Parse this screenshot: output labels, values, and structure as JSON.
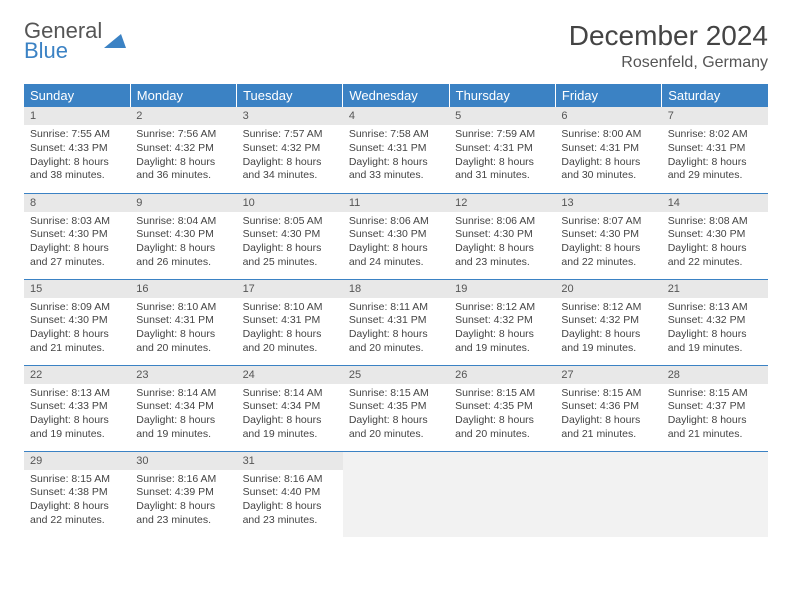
{
  "logo": {
    "line1": "General",
    "line2": "Blue"
  },
  "title": "December 2024",
  "location": "Rosenfeld, Germany",
  "colors": {
    "header_bg": "#3b82c4",
    "daynum_bg": "#e8e8e8",
    "border": "#3b82c4"
  },
  "weekdays": [
    "Sunday",
    "Monday",
    "Tuesday",
    "Wednesday",
    "Thursday",
    "Friday",
    "Saturday"
  ],
  "weeks": [
    [
      {
        "n": "1",
        "sr": "Sunrise: 7:55 AM",
        "ss": "Sunset: 4:33 PM",
        "dl1": "Daylight: 8 hours",
        "dl2": "and 38 minutes."
      },
      {
        "n": "2",
        "sr": "Sunrise: 7:56 AM",
        "ss": "Sunset: 4:32 PM",
        "dl1": "Daylight: 8 hours",
        "dl2": "and 36 minutes."
      },
      {
        "n": "3",
        "sr": "Sunrise: 7:57 AM",
        "ss": "Sunset: 4:32 PM",
        "dl1": "Daylight: 8 hours",
        "dl2": "and 34 minutes."
      },
      {
        "n": "4",
        "sr": "Sunrise: 7:58 AM",
        "ss": "Sunset: 4:31 PM",
        "dl1": "Daylight: 8 hours",
        "dl2": "and 33 minutes."
      },
      {
        "n": "5",
        "sr": "Sunrise: 7:59 AM",
        "ss": "Sunset: 4:31 PM",
        "dl1": "Daylight: 8 hours",
        "dl2": "and 31 minutes."
      },
      {
        "n": "6",
        "sr": "Sunrise: 8:00 AM",
        "ss": "Sunset: 4:31 PM",
        "dl1": "Daylight: 8 hours",
        "dl2": "and 30 minutes."
      },
      {
        "n": "7",
        "sr": "Sunrise: 8:02 AM",
        "ss": "Sunset: 4:31 PM",
        "dl1": "Daylight: 8 hours",
        "dl2": "and 29 minutes."
      }
    ],
    [
      {
        "n": "8",
        "sr": "Sunrise: 8:03 AM",
        "ss": "Sunset: 4:30 PM",
        "dl1": "Daylight: 8 hours",
        "dl2": "and 27 minutes."
      },
      {
        "n": "9",
        "sr": "Sunrise: 8:04 AM",
        "ss": "Sunset: 4:30 PM",
        "dl1": "Daylight: 8 hours",
        "dl2": "and 26 minutes."
      },
      {
        "n": "10",
        "sr": "Sunrise: 8:05 AM",
        "ss": "Sunset: 4:30 PM",
        "dl1": "Daylight: 8 hours",
        "dl2": "and 25 minutes."
      },
      {
        "n": "11",
        "sr": "Sunrise: 8:06 AM",
        "ss": "Sunset: 4:30 PM",
        "dl1": "Daylight: 8 hours",
        "dl2": "and 24 minutes."
      },
      {
        "n": "12",
        "sr": "Sunrise: 8:06 AM",
        "ss": "Sunset: 4:30 PM",
        "dl1": "Daylight: 8 hours",
        "dl2": "and 23 minutes."
      },
      {
        "n": "13",
        "sr": "Sunrise: 8:07 AM",
        "ss": "Sunset: 4:30 PM",
        "dl1": "Daylight: 8 hours",
        "dl2": "and 22 minutes."
      },
      {
        "n": "14",
        "sr": "Sunrise: 8:08 AM",
        "ss": "Sunset: 4:30 PM",
        "dl1": "Daylight: 8 hours",
        "dl2": "and 22 minutes."
      }
    ],
    [
      {
        "n": "15",
        "sr": "Sunrise: 8:09 AM",
        "ss": "Sunset: 4:30 PM",
        "dl1": "Daylight: 8 hours",
        "dl2": "and 21 minutes."
      },
      {
        "n": "16",
        "sr": "Sunrise: 8:10 AM",
        "ss": "Sunset: 4:31 PM",
        "dl1": "Daylight: 8 hours",
        "dl2": "and 20 minutes."
      },
      {
        "n": "17",
        "sr": "Sunrise: 8:10 AM",
        "ss": "Sunset: 4:31 PM",
        "dl1": "Daylight: 8 hours",
        "dl2": "and 20 minutes."
      },
      {
        "n": "18",
        "sr": "Sunrise: 8:11 AM",
        "ss": "Sunset: 4:31 PM",
        "dl1": "Daylight: 8 hours",
        "dl2": "and 20 minutes."
      },
      {
        "n": "19",
        "sr": "Sunrise: 8:12 AM",
        "ss": "Sunset: 4:32 PM",
        "dl1": "Daylight: 8 hours",
        "dl2": "and 19 minutes."
      },
      {
        "n": "20",
        "sr": "Sunrise: 8:12 AM",
        "ss": "Sunset: 4:32 PM",
        "dl1": "Daylight: 8 hours",
        "dl2": "and 19 minutes."
      },
      {
        "n": "21",
        "sr": "Sunrise: 8:13 AM",
        "ss": "Sunset: 4:32 PM",
        "dl1": "Daylight: 8 hours",
        "dl2": "and 19 minutes."
      }
    ],
    [
      {
        "n": "22",
        "sr": "Sunrise: 8:13 AM",
        "ss": "Sunset: 4:33 PM",
        "dl1": "Daylight: 8 hours",
        "dl2": "and 19 minutes."
      },
      {
        "n": "23",
        "sr": "Sunrise: 8:14 AM",
        "ss": "Sunset: 4:34 PM",
        "dl1": "Daylight: 8 hours",
        "dl2": "and 19 minutes."
      },
      {
        "n": "24",
        "sr": "Sunrise: 8:14 AM",
        "ss": "Sunset: 4:34 PM",
        "dl1": "Daylight: 8 hours",
        "dl2": "and 19 minutes."
      },
      {
        "n": "25",
        "sr": "Sunrise: 8:15 AM",
        "ss": "Sunset: 4:35 PM",
        "dl1": "Daylight: 8 hours",
        "dl2": "and 20 minutes."
      },
      {
        "n": "26",
        "sr": "Sunrise: 8:15 AM",
        "ss": "Sunset: 4:35 PM",
        "dl1": "Daylight: 8 hours",
        "dl2": "and 20 minutes."
      },
      {
        "n": "27",
        "sr": "Sunrise: 8:15 AM",
        "ss": "Sunset: 4:36 PM",
        "dl1": "Daylight: 8 hours",
        "dl2": "and 21 minutes."
      },
      {
        "n": "28",
        "sr": "Sunrise: 8:15 AM",
        "ss": "Sunset: 4:37 PM",
        "dl1": "Daylight: 8 hours",
        "dl2": "and 21 minutes."
      }
    ],
    [
      {
        "n": "29",
        "sr": "Sunrise: 8:15 AM",
        "ss": "Sunset: 4:38 PM",
        "dl1": "Daylight: 8 hours",
        "dl2": "and 22 minutes."
      },
      {
        "n": "30",
        "sr": "Sunrise: 8:16 AM",
        "ss": "Sunset: 4:39 PM",
        "dl1": "Daylight: 8 hours",
        "dl2": "and 23 minutes."
      },
      {
        "n": "31",
        "sr": "Sunrise: 8:16 AM",
        "ss": "Sunset: 4:40 PM",
        "dl1": "Daylight: 8 hours",
        "dl2": "and 23 minutes."
      },
      null,
      null,
      null,
      null
    ]
  ]
}
